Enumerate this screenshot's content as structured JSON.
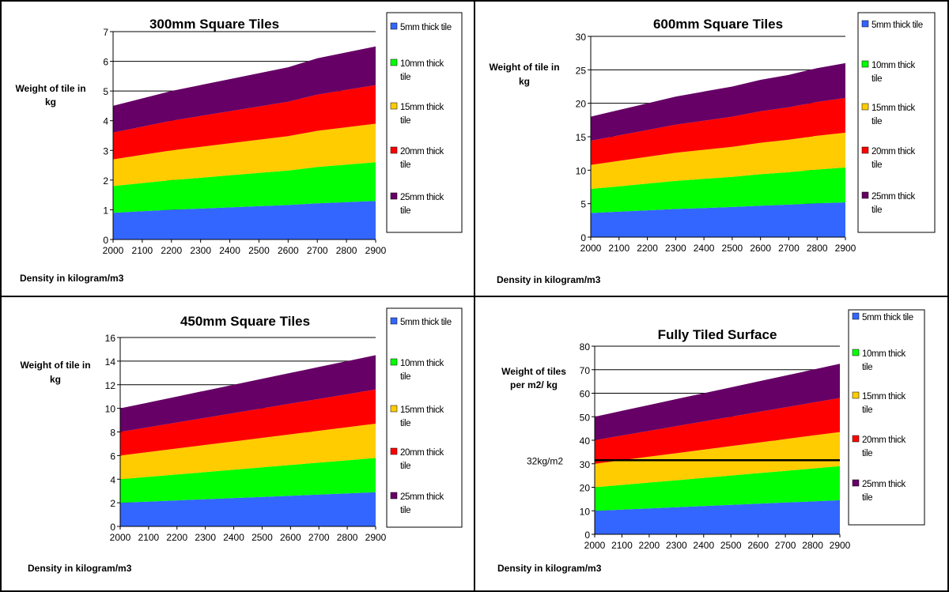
{
  "panels": [
    {
      "name": "panel-300mm",
      "chart_data": {
        "type": "area",
        "stacked": true,
        "title": "300mm Square Tiles",
        "ylabel_lines": [
          "Weight of tile in",
          "kg"
        ],
        "xlabel": "Density in kilogram/m3",
        "x": [
          2000,
          2100,
          2200,
          2300,
          2400,
          2500,
          2600,
          2700,
          2800,
          2900
        ],
        "ylim": [
          0,
          7
        ],
        "yticks": [
          0,
          1,
          2,
          3,
          4,
          5,
          6,
          7
        ],
        "grid": true,
        "legend": "right",
        "series": [
          {
            "label_lines": [
              "5mm thick tile"
            ],
            "values": [
              0.9,
              0.95,
              1.0,
              1.04,
              1.08,
              1.12,
              1.16,
              1.22,
              1.26,
              1.3
            ]
          },
          {
            "label_lines": [
              "10mm thick",
              "tile"
            ],
            "values": [
              0.9,
              0.95,
              1.0,
              1.04,
              1.08,
              1.12,
              1.16,
              1.22,
              1.26,
              1.3
            ]
          },
          {
            "label_lines": [
              "15mm thick",
              "tile"
            ],
            "values": [
              0.9,
              0.95,
              1.0,
              1.04,
              1.08,
              1.12,
              1.16,
              1.22,
              1.26,
              1.3
            ]
          },
          {
            "label_lines": [
              "20mm thick",
              "tile"
            ],
            "values": [
              0.9,
              0.95,
              1.0,
              1.04,
              1.08,
              1.12,
              1.16,
              1.22,
              1.26,
              1.3
            ]
          },
          {
            "label_lines": [
              "25mm thick",
              "tile"
            ],
            "values": [
              0.9,
              0.95,
              1.0,
              1.04,
              1.08,
              1.12,
              1.16,
              1.22,
              1.26,
              1.3
            ]
          }
        ]
      }
    },
    {
      "name": "panel-600mm",
      "chart_data": {
        "type": "area",
        "stacked": true,
        "title": "600mm Square Tiles",
        "ylabel_lines": [
          "Weight of tile in",
          "kg"
        ],
        "xlabel": "Density in kilogram/m3",
        "x": [
          2000,
          2100,
          2200,
          2300,
          2400,
          2500,
          2600,
          2700,
          2800,
          2900
        ],
        "ylim": [
          0,
          30
        ],
        "yticks": [
          0,
          5,
          10,
          15,
          20,
          25,
          30
        ],
        "grid": true,
        "legend": "right",
        "series": [
          {
            "label_lines": [
              "5mm thick tile"
            ],
            "values": [
              3.6,
              3.8,
              4.0,
              4.2,
              4.35,
              4.5,
              4.7,
              4.85,
              5.05,
              5.2
            ]
          },
          {
            "label_lines": [
              "10mm thick",
              "tile"
            ],
            "values": [
              3.6,
              3.8,
              4.0,
              4.2,
              4.35,
              4.5,
              4.7,
              4.85,
              5.05,
              5.2
            ]
          },
          {
            "label_lines": [
              "15mm thick",
              "tile"
            ],
            "values": [
              3.6,
              3.8,
              4.0,
              4.2,
              4.35,
              4.5,
              4.7,
              4.85,
              5.05,
              5.2
            ]
          },
          {
            "label_lines": [
              "20mm thick",
              "tile"
            ],
            "values": [
              3.6,
              3.8,
              4.0,
              4.2,
              4.35,
              4.5,
              4.7,
              4.85,
              5.05,
              5.2
            ]
          },
          {
            "label_lines": [
              "25mm thick",
              "tile"
            ],
            "values": [
              3.6,
              3.8,
              4.0,
              4.2,
              4.35,
              4.5,
              4.7,
              4.85,
              5.05,
              5.2
            ]
          }
        ]
      }
    },
    {
      "name": "panel-450mm",
      "chart_data": {
        "type": "area",
        "stacked": true,
        "title": "450mm Square Tiles",
        "ylabel_lines": [
          "Weight of tile in",
          "kg"
        ],
        "xlabel": "Density in kilogram/m3",
        "x": [
          2000,
          2100,
          2200,
          2300,
          2400,
          2500,
          2600,
          2700,
          2800,
          2900
        ],
        "ylim": [
          0,
          16
        ],
        "yticks": [
          0,
          2,
          4,
          6,
          8,
          10,
          12,
          14,
          16
        ],
        "grid": true,
        "legend": "right",
        "series": [
          {
            "label_lines": [
              "5mm thick tile"
            ],
            "values": [
              2.0,
              2.1,
              2.2,
              2.3,
              2.4,
              2.5,
              2.6,
              2.7,
              2.8,
              2.9
            ]
          },
          {
            "label_lines": [
              "10mm thick",
              "tile"
            ],
            "values": [
              2.0,
              2.1,
              2.2,
              2.3,
              2.4,
              2.5,
              2.6,
              2.7,
              2.8,
              2.9
            ]
          },
          {
            "label_lines": [
              "15mm thick",
              "tile"
            ],
            "values": [
              2.0,
              2.1,
              2.2,
              2.3,
              2.4,
              2.5,
              2.6,
              2.7,
              2.8,
              2.9
            ]
          },
          {
            "label_lines": [
              "20mm thick",
              "tile"
            ],
            "values": [
              2.0,
              2.1,
              2.2,
              2.3,
              2.4,
              2.5,
              2.6,
              2.7,
              2.8,
              2.9
            ]
          },
          {
            "label_lines": [
              "25mm thick",
              "tile"
            ],
            "values": [
              2.0,
              2.1,
              2.2,
              2.3,
              2.4,
              2.5,
              2.6,
              2.7,
              2.8,
              2.9
            ]
          }
        ]
      }
    },
    {
      "name": "panel-fully-tiled",
      "chart_data": {
        "type": "area",
        "stacked": true,
        "title": "Fully Tiled Surface",
        "ylabel_lines": [
          "Weight of tiles",
          "per m2/ kg"
        ],
        "xlabel": "Density in kilogram/m3",
        "x": [
          2000,
          2100,
          2200,
          2300,
          2400,
          2500,
          2600,
          2700,
          2800,
          2900
        ],
        "ylim": [
          0,
          80
        ],
        "yticks": [
          0,
          10,
          20,
          30,
          40,
          50,
          60,
          70,
          80
        ],
        "grid": true,
        "legend": "right",
        "reference_line": {
          "value": 31.5,
          "label": "32kg/m2"
        },
        "series": [
          {
            "label_lines": [
              "5mm thick tile"
            ],
            "values": [
              10,
              10.5,
              11,
              11.5,
              12,
              12.5,
              13,
              13.5,
              14,
              14.5
            ]
          },
          {
            "label_lines": [
              "10mm thick",
              "tile"
            ],
            "values": [
              10,
              10.5,
              11,
              11.5,
              12,
              12.5,
              13,
              13.5,
              14,
              14.5
            ]
          },
          {
            "label_lines": [
              "15mm thick",
              "tile"
            ],
            "values": [
              10,
              10.5,
              11,
              11.5,
              12,
              12.5,
              13,
              13.5,
              14,
              14.5
            ]
          },
          {
            "label_lines": [
              "20mm thick",
              "tile"
            ],
            "values": [
              10,
              10.5,
              11,
              11.5,
              12,
              12.5,
              13,
              13.5,
              14,
              14.5
            ]
          },
          {
            "label_lines": [
              "25mm thick",
              "tile"
            ],
            "values": [
              10,
              10.5,
              11,
              11.5,
              12,
              12.5,
              13,
              13.5,
              14,
              14.5
            ]
          }
        ]
      }
    }
  ],
  "colors": {
    "series": [
      "#3366ff",
      "#00ff00",
      "#ffcc00",
      "#ff0000",
      "#660066"
    ],
    "gridline": "#000000",
    "reference_line": "#000000"
  }
}
